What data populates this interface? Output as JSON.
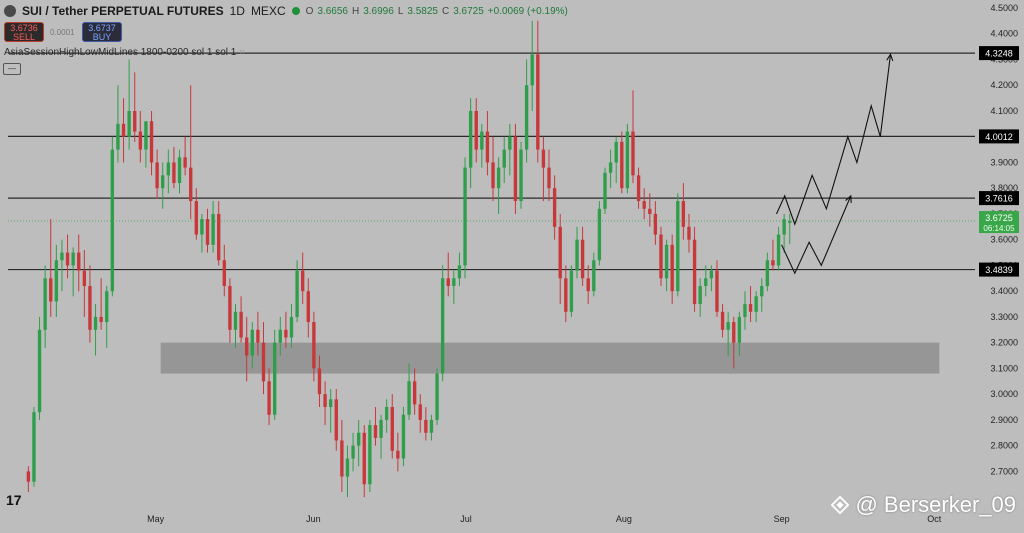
{
  "header": {
    "symbol": "SUI / Tether PERPETUAL FUTURES",
    "timeframe": "1D",
    "exchange": "MEXC",
    "open_label": "O",
    "open": "3.6656",
    "high_label": "H",
    "high": "3.6996",
    "low_label": "L",
    "low": "3.5825",
    "close_label": "C",
    "close": "3.6725",
    "change": "+0.0069 (+0.19%)"
  },
  "trade": {
    "sell_price": "3.6736",
    "sell_label": "SELL",
    "buy_price": "3.6737",
    "buy_label": "BUY",
    "spread": "0.0001"
  },
  "indicator": {
    "label": "AsiaSessionHighLowMidLines 1800-0200 sol 1 sol 1"
  },
  "watermark": {
    "text": "@ Berserker_09",
    "icon": "binance-diamond-icon"
  },
  "colors": {
    "background": "#bdbdbd",
    "up": "#2e9e4a",
    "down": "#c8373a",
    "zone": "#8f8f8f",
    "line": "#2a2a2a",
    "label_bg": "#000000",
    "current_price_bg": "#3aa64a"
  },
  "chart_data": {
    "type": "candlestick",
    "ylim": [
      2.55,
      4.5
    ],
    "yticks": [
      "4.5000",
      "4.4000",
      "4.3000",
      "4.2000",
      "4.1000",
      "4.0000",
      "3.9000",
      "3.8000",
      "3.7000",
      "3.6000",
      "3.5000",
      "3.4000",
      "3.3000",
      "3.2000",
      "3.1000",
      "3.0000",
      "2.9000",
      "2.8000",
      "2.7000"
    ],
    "x_ticks": [
      "May",
      "Jun",
      "Jul",
      "Aug",
      "Sep",
      "Oct"
    ],
    "x_tick_days": [
      29,
      60,
      90,
      121,
      152,
      182
    ],
    "horizontal_levels": [
      {
        "price": 4.3248,
        "label": "4.3248"
      },
      {
        "price": 4.0012,
        "label": "4.0012"
      },
      {
        "price": 3.7616,
        "label": "3.7616"
      },
      {
        "price": 3.4839,
        "label": "3.4839"
      }
    ],
    "current_price": {
      "price": 3.6725,
      "label": "3.6725",
      "countdown": "06:14:05"
    },
    "zone": {
      "from_day": 30,
      "to_day": 183,
      "low": 3.08,
      "high": 3.2
    },
    "projection_upper": [
      [
        151,
        3.7
      ],
      [
        152.6,
        3.77
      ],
      [
        154.6,
        3.66
      ],
      [
        158,
        3.85
      ],
      [
        160.8,
        3.72
      ],
      [
        165,
        4.0
      ],
      [
        166.8,
        3.9
      ],
      [
        169.6,
        4.12
      ],
      [
        171.4,
        4.0
      ],
      [
        173.4,
        4.32
      ]
    ],
    "projection_lower": [
      [
        152,
        3.58
      ],
      [
        154.6,
        3.47
      ],
      [
        157.4,
        3.59
      ],
      [
        159.8,
        3.5
      ],
      [
        165.6,
        3.77
      ]
    ],
    "candles_ohlc": [
      [
        2.7,
        2.72,
        2.62,
        2.66
      ],
      [
        2.66,
        2.95,
        2.64,
        2.93
      ],
      [
        2.93,
        3.3,
        2.9,
        3.25
      ],
      [
        3.25,
        3.5,
        3.18,
        3.45
      ],
      [
        3.45,
        3.68,
        3.3,
        3.36
      ],
      [
        3.36,
        3.58,
        3.3,
        3.52
      ],
      [
        3.52,
        3.6,
        3.4,
        3.55
      ],
      [
        3.55,
        3.62,
        3.45,
        3.5
      ],
      [
        3.5,
        3.57,
        3.38,
        3.55
      ],
      [
        3.55,
        3.62,
        3.4,
        3.48
      ],
      [
        3.48,
        3.56,
        3.3,
        3.42
      ],
      [
        3.42,
        3.5,
        3.2,
        3.25
      ],
      [
        3.25,
        3.35,
        3.15,
        3.3
      ],
      [
        3.3,
        3.45,
        3.25,
        3.28
      ],
      [
        3.28,
        3.42,
        3.18,
        3.4
      ],
      [
        3.4,
        4.0,
        3.38,
        3.95
      ],
      [
        3.95,
        4.2,
        3.9,
        4.05
      ],
      [
        4.05,
        4.15,
        3.9,
        4.0
      ],
      [
        4.0,
        4.3,
        3.95,
        4.1
      ],
      [
        4.1,
        4.25,
        3.98,
        4.02
      ],
      [
        4.02,
        4.1,
        3.9,
        3.95
      ],
      [
        3.95,
        4.05,
        3.88,
        4.06
      ],
      [
        4.06,
        4.1,
        3.85,
        3.9
      ],
      [
        3.9,
        3.95,
        3.76,
        3.8
      ],
      [
        3.8,
        3.9,
        3.72,
        3.85
      ],
      [
        3.85,
        3.95,
        3.78,
        3.9
      ],
      [
        3.9,
        3.96,
        3.8,
        3.82
      ],
      [
        3.82,
        3.95,
        3.78,
        3.92
      ],
      [
        3.92,
        4.0,
        3.85,
        3.88
      ],
      [
        3.88,
        4.2,
        3.68,
        3.75
      ],
      [
        3.75,
        3.8,
        3.6,
        3.62
      ],
      [
        3.62,
        3.7,
        3.55,
        3.68
      ],
      [
        3.68,
        3.72,
        3.55,
        3.58
      ],
      [
        3.58,
        3.75,
        3.55,
        3.7
      ],
      [
        3.7,
        3.75,
        3.5,
        3.52
      ],
      [
        3.52,
        3.58,
        3.38,
        3.42
      ],
      [
        3.42,
        3.45,
        3.2,
        3.25
      ],
      [
        3.25,
        3.35,
        3.18,
        3.32
      ],
      [
        3.32,
        3.38,
        3.2,
        3.22
      ],
      [
        3.22,
        3.3,
        3.05,
        3.15
      ],
      [
        3.15,
        3.28,
        3.1,
        3.25
      ],
      [
        3.25,
        3.32,
        3.15,
        3.2
      ],
      [
        3.2,
        3.28,
        3.0,
        3.05
      ],
      [
        3.05,
        3.1,
        2.88,
        2.92
      ],
      [
        2.92,
        3.25,
        2.9,
        3.2
      ],
      [
        3.2,
        3.3,
        3.15,
        3.25
      ],
      [
        3.25,
        3.32,
        3.18,
        3.22
      ],
      [
        3.22,
        3.35,
        3.18,
        3.3
      ],
      [
        3.3,
        3.52,
        3.28,
        3.48
      ],
      [
        3.48,
        3.55,
        3.35,
        3.4
      ],
      [
        3.4,
        3.45,
        3.22,
        3.28
      ],
      [
        3.28,
        3.32,
        3.05,
        3.1
      ],
      [
        3.1,
        3.15,
        2.95,
        3.0
      ],
      [
        3.0,
        3.05,
        2.88,
        2.95
      ],
      [
        2.95,
        3.02,
        2.85,
        2.98
      ],
      [
        2.98,
        3.02,
        2.78,
        2.82
      ],
      [
        2.82,
        2.9,
        2.62,
        2.68
      ],
      [
        2.68,
        2.8,
        2.6,
        2.75
      ],
      [
        2.75,
        2.85,
        2.7,
        2.8
      ],
      [
        2.8,
        2.9,
        2.72,
        2.85
      ],
      [
        2.85,
        2.88,
        2.6,
        2.65
      ],
      [
        2.65,
        2.9,
        2.62,
        2.88
      ],
      [
        2.88,
        2.95,
        2.8,
        2.83
      ],
      [
        2.83,
        2.92,
        2.75,
        2.9
      ],
      [
        2.9,
        2.98,
        2.85,
        2.95
      ],
      [
        2.95,
        3.0,
        2.75,
        2.78
      ],
      [
        2.78,
        2.85,
        2.7,
        2.75
      ],
      [
        2.75,
        2.95,
        2.72,
        2.92
      ],
      [
        2.92,
        3.12,
        2.9,
        3.05
      ],
      [
        3.05,
        3.1,
        2.92,
        2.96
      ],
      [
        2.96,
        3.0,
        2.85,
        2.9
      ],
      [
        2.9,
        2.95,
        2.82,
        2.85
      ],
      [
        2.85,
        2.92,
        2.82,
        2.9
      ],
      [
        2.9,
        3.1,
        2.88,
        3.08
      ],
      [
        3.08,
        3.5,
        3.05,
        3.45
      ],
      [
        3.45,
        3.55,
        3.38,
        3.42
      ],
      [
        3.42,
        3.48,
        3.35,
        3.45
      ],
      [
        3.45,
        3.55,
        3.42,
        3.5
      ],
      [
        3.5,
        3.92,
        3.45,
        3.88
      ],
      [
        3.88,
        4.15,
        3.8,
        4.1
      ],
      [
        4.1,
        4.15,
        3.9,
        3.95
      ],
      [
        3.95,
        4.05,
        3.88,
        4.02
      ],
      [
        4.02,
        4.1,
        3.85,
        3.9
      ],
      [
        3.9,
        4.0,
        3.75,
        3.8
      ],
      [
        3.8,
        3.92,
        3.7,
        3.88
      ],
      [
        3.88,
        4.0,
        3.82,
        3.95
      ],
      [
        3.95,
        4.05,
        3.85,
        4.0
      ],
      [
        4.0,
        4.05,
        3.7,
        3.75
      ],
      [
        3.75,
        3.98,
        3.72,
        3.95
      ],
      [
        3.95,
        4.3,
        3.9,
        4.2
      ],
      [
        4.2,
        4.45,
        4.1,
        4.32
      ],
      [
        4.32,
        4.45,
        3.9,
        3.95
      ],
      [
        3.95,
        4.0,
        3.75,
        3.88
      ],
      [
        3.88,
        3.95,
        3.75,
        3.8
      ],
      [
        3.8,
        3.85,
        3.6,
        3.65
      ],
      [
        3.65,
        3.7,
        3.35,
        3.45
      ],
      [
        3.45,
        3.5,
        3.28,
        3.32
      ],
      [
        3.32,
        3.5,
        3.3,
        3.48
      ],
      [
        3.48,
        3.65,
        3.45,
        3.6
      ],
      [
        3.6,
        3.65,
        3.42,
        3.45
      ],
      [
        3.45,
        3.5,
        3.35,
        3.4
      ],
      [
        3.4,
        3.55,
        3.38,
        3.52
      ],
      [
        3.52,
        3.75,
        3.5,
        3.72
      ],
      [
        3.72,
        3.88,
        3.7,
        3.86
      ],
      [
        3.86,
        3.95,
        3.8,
        3.9
      ],
      [
        3.9,
        4.0,
        3.82,
        3.98
      ],
      [
        3.98,
        4.02,
        3.78,
        3.8
      ],
      [
        3.8,
        4.05,
        3.78,
        4.02
      ],
      [
        4.02,
        4.18,
        3.82,
        3.85
      ],
      [
        3.85,
        3.88,
        3.72,
        3.75
      ],
      [
        3.75,
        3.8,
        3.68,
        3.72
      ],
      [
        3.72,
        3.78,
        3.65,
        3.7
      ],
      [
        3.7,
        3.75,
        3.58,
        3.62
      ],
      [
        3.62,
        3.65,
        3.42,
        3.45
      ],
      [
        3.45,
        3.6,
        3.4,
        3.58
      ],
      [
        3.58,
        3.62,
        3.35,
        3.4
      ],
      [
        3.4,
        3.78,
        3.38,
        3.75
      ],
      [
        3.75,
        3.82,
        3.6,
        3.65
      ],
      [
        3.65,
        3.7,
        3.55,
        3.6
      ],
      [
        3.6,
        3.65,
        3.32,
        3.35
      ],
      [
        3.35,
        3.45,
        3.3,
        3.42
      ],
      [
        3.42,
        3.5,
        3.38,
        3.45
      ],
      [
        3.45,
        3.5,
        3.4,
        3.48
      ],
      [
        3.48,
        3.52,
        3.3,
        3.32
      ],
      [
        3.32,
        3.35,
        3.22,
        3.25
      ],
      [
        3.25,
        3.32,
        3.15,
        3.28
      ],
      [
        3.28,
        3.3,
        3.1,
        3.2
      ],
      [
        3.2,
        3.32,
        3.15,
        3.3
      ],
      [
        3.3,
        3.4,
        3.25,
        3.35
      ],
      [
        3.35,
        3.42,
        3.28,
        3.32
      ],
      [
        3.32,
        3.4,
        3.28,
        3.38
      ],
      [
        3.38,
        3.45,
        3.32,
        3.42
      ],
      [
        3.42,
        3.55,
        3.4,
        3.52
      ],
      [
        3.52,
        3.6,
        3.48,
        3.5
      ],
      [
        3.5,
        3.65,
        3.48,
        3.62
      ],
      [
        3.62,
        3.7,
        3.55,
        3.68
      ],
      [
        3.6656,
        3.6996,
        3.5825,
        3.6725
      ]
    ],
    "candles_start_day": 4,
    "candles_step_days": 1.1
  }
}
